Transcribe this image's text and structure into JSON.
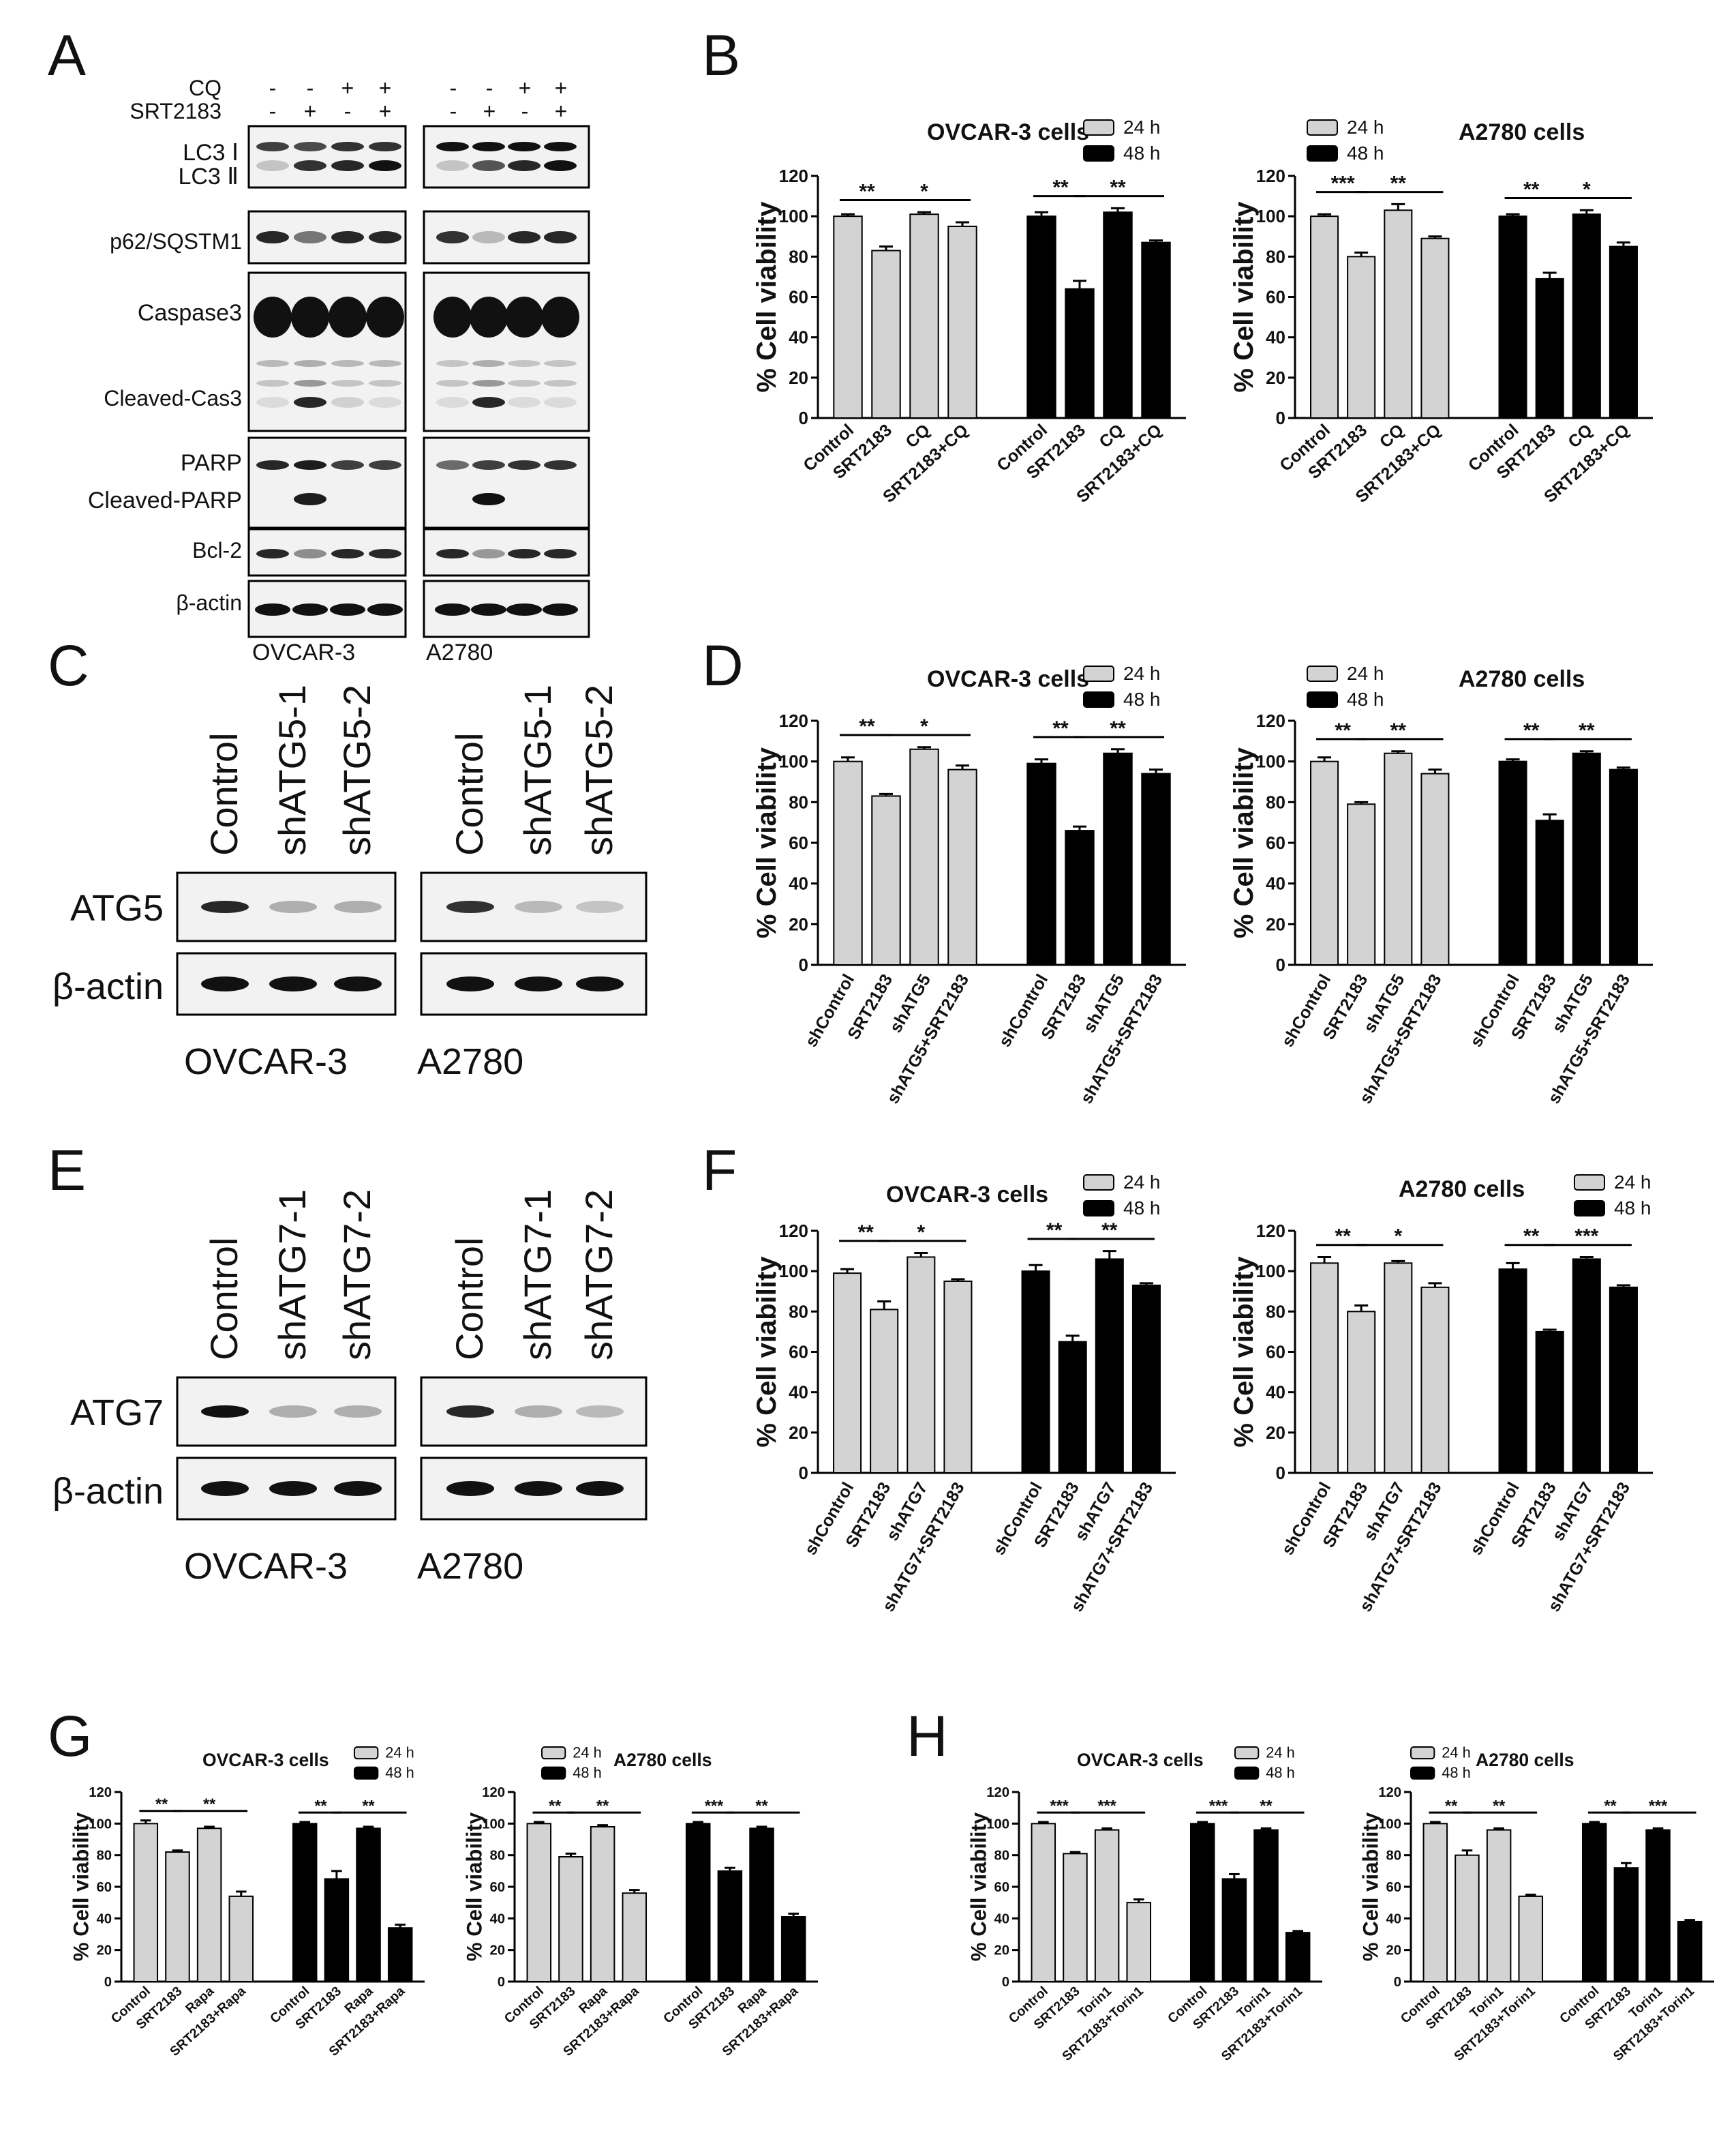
{
  "panel_letters": [
    "A",
    "B",
    "C",
    "D",
    "E",
    "F",
    "G",
    "H"
  ],
  "colors": {
    "bar_24h": "#d3d3d3",
    "bar_48h": "#000000",
    "blot_bg": "#f2f2f2",
    "band": "#111111"
  },
  "blots": {
    "A": {
      "treatment_rows": [
        {
          "label": "CQ",
          "signs": [
            "-",
            "-",
            "+",
            "+",
            "-",
            "-",
            "+",
            "+"
          ]
        },
        {
          "label": "SRT2183",
          "signs": [
            "-",
            "+",
            "-",
            "+",
            "-",
            "+",
            "-",
            "+"
          ]
        }
      ],
      "rows": [
        "LC3 Ⅰ",
        "LC3 Ⅱ",
        "p62/SQSTM1",
        "Caspase3",
        "Cleaved-Cas3",
        "PARP",
        "Cleaved-PARP",
        "Bcl-2",
        "β-actin"
      ],
      "cells": [
        "OVCAR-3",
        "A2780"
      ]
    },
    "C": {
      "lanes": [
        "Control",
        "shATG5-1",
        "shATG5-2",
        "Control",
        "shATG5-1",
        "shATG5-2"
      ],
      "rows": [
        "ATG5",
        "β-actin"
      ],
      "cells": [
        "OVCAR-3",
        "A2780"
      ]
    },
    "E": {
      "lanes": [
        "Control",
        "shATG7-1",
        "shATG7-2",
        "Control",
        "shATG7-1",
        "shATG7-2"
      ],
      "rows": [
        "ATG7",
        "β-actin"
      ],
      "cells": [
        "OVCAR-3",
        "A2780"
      ]
    }
  },
  "chart_data": [
    {
      "panel": "B",
      "type": "bar",
      "title": "OVCAR-3 cells",
      "ylabel": "% Cell viability",
      "ylim": [
        0,
        120
      ],
      "yticks": [
        0,
        20,
        40,
        60,
        80,
        100,
        120
      ],
      "categories": [
        "Control",
        "SRT2183",
        "CQ",
        "SRT2183+CQ"
      ],
      "series": [
        {
          "name": "24 h",
          "values": [
            100,
            83,
            101,
            95
          ],
          "errors": [
            1,
            2,
            1,
            2
          ]
        },
        {
          "name": "48 h",
          "values": [
            100,
            64,
            102,
            87
          ],
          "errors": [
            2,
            4,
            2,
            1
          ]
        }
      ],
      "sig": [
        [
          "**",
          "*"
        ],
        [
          "**",
          "**"
        ]
      ]
    },
    {
      "panel": "B",
      "type": "bar",
      "title": "A2780 cells",
      "ylabel": "% Cell viability",
      "ylim": [
        0,
        120
      ],
      "yticks": [
        0,
        20,
        40,
        60,
        80,
        100,
        120
      ],
      "categories": [
        "Control",
        "SRT2183",
        "CQ",
        "SRT2183+CQ"
      ],
      "series": [
        {
          "name": "24 h",
          "values": [
            100,
            80,
            103,
            89
          ],
          "errors": [
            1,
            2,
            3,
            1
          ]
        },
        {
          "name": "48 h",
          "values": [
            100,
            69,
            101,
            85
          ],
          "errors": [
            1,
            3,
            2,
            2
          ]
        }
      ],
      "sig": [
        [
          "***",
          "**"
        ],
        [
          "**",
          "*"
        ]
      ]
    },
    {
      "panel": "D",
      "type": "bar",
      "title": "OVCAR-3 cells",
      "ylabel": "% Cell viability",
      "ylim": [
        0,
        120
      ],
      "yticks": [
        0,
        20,
        40,
        60,
        80,
        100,
        120
      ],
      "categories": [
        "shControl",
        "SRT2183",
        "shATG5",
        "shATG5+SRT2183"
      ],
      "series": [
        {
          "name": "24 h",
          "values": [
            100,
            83,
            106,
            96
          ],
          "errors": [
            2,
            1,
            1,
            2
          ]
        },
        {
          "name": "48 h",
          "values": [
            99,
            66,
            104,
            94
          ],
          "errors": [
            2,
            2,
            2,
            2
          ]
        }
      ],
      "sig": [
        [
          "**",
          "*"
        ],
        [
          "**",
          "**"
        ]
      ]
    },
    {
      "panel": "D",
      "type": "bar",
      "title": "A2780 cells",
      "ylabel": "% Cell viability",
      "ylim": [
        0,
        120
      ],
      "yticks": [
        0,
        20,
        40,
        60,
        80,
        100,
        120
      ],
      "categories": [
        "shControl",
        "SRT2183",
        "shATG5",
        "shATG5+SRT2183"
      ],
      "series": [
        {
          "name": "24 h",
          "values": [
            100,
            79,
            104,
            94
          ],
          "errors": [
            2,
            1,
            1,
            2
          ]
        },
        {
          "name": "48 h",
          "values": [
            100,
            71,
            104,
            96
          ],
          "errors": [
            1,
            3,
            1,
            1
          ]
        }
      ],
      "sig": [
        [
          "**",
          "**"
        ],
        [
          "**",
          "**"
        ]
      ]
    },
    {
      "panel": "F",
      "type": "bar",
      "title": "OVCAR-3 cells",
      "ylabel": "% Cell viability",
      "ylim": [
        0,
        120
      ],
      "yticks": [
        0,
        20,
        40,
        60,
        80,
        100,
        120
      ],
      "categories": [
        "shControl",
        "SRT2183",
        "shATG7",
        "shATG7+SRT2183"
      ],
      "series": [
        {
          "name": "24 h",
          "values": [
            99,
            81,
            107,
            95
          ],
          "errors": [
            2,
            4,
            2,
            1
          ]
        },
        {
          "name": "48 h",
          "values": [
            100,
            65,
            106,
            93
          ],
          "errors": [
            3,
            3,
            4,
            1
          ]
        }
      ],
      "sig": [
        [
          "**",
          "*"
        ],
        [
          "**",
          "**"
        ]
      ]
    },
    {
      "panel": "F",
      "type": "bar",
      "title": "A2780 cells",
      "ylabel": "% Cell viability",
      "ylim": [
        0,
        120
      ],
      "yticks": [
        0,
        20,
        40,
        60,
        80,
        100,
        120
      ],
      "categories": [
        "shControl",
        "SRT2183",
        "shATG7",
        "shATG7+SRT2183"
      ],
      "series": [
        {
          "name": "24 h",
          "values": [
            104,
            80,
            104,
            92
          ],
          "errors": [
            3,
            3,
            1,
            2
          ]
        },
        {
          "name": "48 h",
          "values": [
            101,
            70,
            106,
            92
          ],
          "errors": [
            3,
            1,
            1,
            1
          ]
        }
      ],
      "sig": [
        [
          "**",
          "*"
        ],
        [
          "**",
          "***"
        ]
      ]
    },
    {
      "panel": "G",
      "type": "bar",
      "title": "OVCAR-3 cells",
      "ylabel": "% Cell viability",
      "ylim": [
        0,
        120
      ],
      "yticks": [
        0,
        20,
        40,
        60,
        80,
        100,
        120
      ],
      "categories": [
        "Control",
        "SRT2183",
        "Rapa",
        "SRT2183+Rapa"
      ],
      "series": [
        {
          "name": "24 h",
          "values": [
            100,
            82,
            97,
            54
          ],
          "errors": [
            2,
            1,
            1,
            3
          ]
        },
        {
          "name": "48 h",
          "values": [
            100,
            65,
            97,
            34
          ],
          "errors": [
            1,
            5,
            1,
            2
          ]
        }
      ],
      "sig": [
        [
          "**",
          "**"
        ],
        [
          "**",
          "**"
        ]
      ]
    },
    {
      "panel": "G",
      "type": "bar",
      "title": "A2780 cells",
      "ylabel": "% Cell viability",
      "ylim": [
        0,
        120
      ],
      "yticks": [
        0,
        20,
        40,
        60,
        80,
        100,
        120
      ],
      "categories": [
        "Control",
        "SRT2183",
        "Rapa",
        "SRT2183+Rapa"
      ],
      "series": [
        {
          "name": "24 h",
          "values": [
            100,
            79,
            98,
            56
          ],
          "errors": [
            1,
            2,
            1,
            2
          ]
        },
        {
          "name": "48 h",
          "values": [
            100,
            70,
            97,
            41
          ],
          "errors": [
            1,
            2,
            1,
            2
          ]
        }
      ],
      "sig": [
        [
          "**",
          "**"
        ],
        [
          "***",
          "**"
        ]
      ]
    },
    {
      "panel": "H",
      "type": "bar",
      "title": "OVCAR-3 cells",
      "ylabel": "% Cell viability",
      "ylim": [
        0,
        120
      ],
      "yticks": [
        0,
        20,
        40,
        60,
        80,
        100,
        120
      ],
      "categories": [
        "Control",
        "SRT2183",
        "Torin1",
        "SRT2183+Torin1"
      ],
      "series": [
        {
          "name": "24 h",
          "values": [
            100,
            81,
            96,
            50
          ],
          "errors": [
            1,
            1,
            1,
            2
          ]
        },
        {
          "name": "48 h",
          "values": [
            100,
            65,
            96,
            31
          ],
          "errors": [
            1,
            3,
            1,
            1
          ]
        }
      ],
      "sig": [
        [
          "***",
          "***"
        ],
        [
          "***",
          "**"
        ]
      ]
    },
    {
      "panel": "H",
      "type": "bar",
      "title": "A2780 cells",
      "ylabel": "% Cell viability",
      "ylim": [
        0,
        120
      ],
      "yticks": [
        0,
        20,
        40,
        60,
        80,
        100,
        120
      ],
      "categories": [
        "Control",
        "SRT2183",
        "Torin1",
        "SRT2183+Torin1"
      ],
      "series": [
        {
          "name": "24 h",
          "values": [
            100,
            80,
            96,
            54
          ],
          "errors": [
            1,
            3,
            1,
            1
          ]
        },
        {
          "name": "48 h",
          "values": [
            100,
            72,
            96,
            38
          ],
          "errors": [
            1,
            3,
            1,
            1
          ]
        }
      ],
      "sig": [
        [
          "**",
          "**"
        ],
        [
          "**",
          "***"
        ]
      ]
    }
  ]
}
